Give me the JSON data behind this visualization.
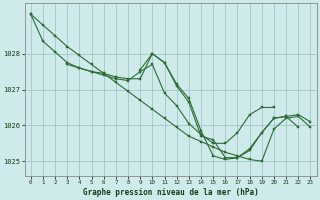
{
  "bg_color": "#ceeaea",
  "grid_color": "#a8cccc",
  "line_color": "#2d6b35",
  "xlabel": "Graphe pression niveau de la mer (hPa)",
  "ylim": [
    1024.6,
    1029.4
  ],
  "xlim": [
    -0.5,
    23.5
  ],
  "yticks": [
    1025,
    1026,
    1027,
    1028
  ],
  "xticks": [
    0,
    1,
    2,
    3,
    4,
    5,
    6,
    7,
    8,
    9,
    10,
    11,
    12,
    13,
    14,
    15,
    16,
    17,
    18,
    19,
    20,
    21,
    22,
    23
  ],
  "series": [
    {
      "x": [
        0,
        1,
        2,
        3,
        4,
        5,
        6,
        7,
        8,
        9,
        10,
        11,
        12,
        13,
        14,
        15,
        16,
        17,
        18,
        19,
        20,
        21,
        22
      ],
      "y": [
        1029.1,
        1028.35,
        1028.05,
        1027.75,
        1027.6,
        1027.5,
        1027.45,
        1027.35,
        1027.3,
        1027.3,
        1028.0,
        1027.75,
        1027.15,
        1026.75,
        1025.85,
        1025.15,
        1025.05,
        1025.1,
        1025.3,
        1025.8,
        1026.2,
        1026.25,
        1025.95
      ]
    },
    {
      "x": [
        0,
        1,
        2,
        3,
        4,
        5,
        6,
        7,
        8,
        9,
        10,
        11,
        12,
        13,
        14,
        15,
        16,
        17,
        18,
        19,
        20,
        21,
        22,
        23
      ],
      "y": [
        1029.1,
        1028.8,
        1028.5,
        1028.2,
        1027.95,
        1027.7,
        1027.45,
        1027.2,
        1026.95,
        1026.7,
        1026.45,
        1026.2,
        1025.95,
        1025.7,
        1025.55,
        1025.4,
        1025.25,
        1025.15,
        1025.05,
        1025.0,
        1025.9,
        1026.2,
        1026.25,
        1025.95
      ]
    },
    {
      "x": [
        3,
        4,
        5,
        6,
        7,
        8,
        9,
        10,
        11,
        12,
        13,
        14,
        15,
        16,
        17,
        18,
        19,
        20
      ],
      "y": [
        1027.7,
        1027.6,
        1027.5,
        1027.4,
        1027.3,
        1027.25,
        1027.5,
        1027.7,
        1026.9,
        1026.55,
        1026.05,
        1025.75,
        1025.5,
        1025.5,
        1025.8,
        1026.3,
        1026.5,
        1026.5
      ]
    },
    {
      "x": [
        9,
        10,
        11,
        12,
        13,
        14,
        15,
        16,
        17,
        18,
        19,
        20,
        21,
        22,
        23
      ],
      "y": [
        1027.55,
        1028.0,
        1027.75,
        1027.1,
        1026.65,
        1025.7,
        1025.6,
        1025.1,
        1025.1,
        1025.35,
        1025.8,
        1026.2,
        1026.25,
        1026.3,
        1026.1
      ]
    }
  ]
}
